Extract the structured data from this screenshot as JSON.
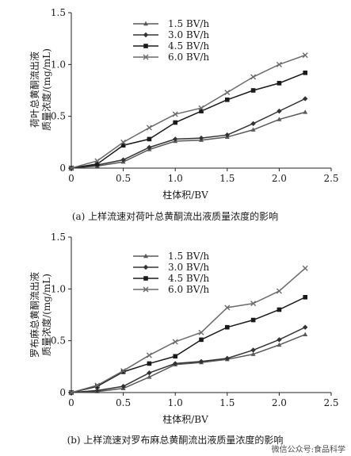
{
  "chart_data": [
    {
      "type": "line",
      "title": "",
      "caption": "(a) 上样流速对荷叶总黄酮流出液质量浓度的影响",
      "xlabel": "柱体积/BV",
      "ylabel_lines": [
        "荷叶总黄酮流出液",
        "质量浓度/(mg/mL)"
      ],
      "xlim": [
        0,
        2.5
      ],
      "ylim": [
        0,
        1.5
      ],
      "xticks": [
        "0",
        "0.5",
        "1.0",
        "1.5",
        "2.0",
        "2.5"
      ],
      "yticks": [
        "0",
        "0.5",
        "1.0",
        "1.5"
      ],
      "legend_position": "top-left",
      "grid": false,
      "series": [
        {
          "name": "1.5 BV/h",
          "marker": "triangle",
          "x": [
            0,
            0.25,
            0.5,
            0.75,
            1.0,
            1.25,
            1.5,
            1.75,
            2.0,
            2.25
          ],
          "y": [
            0,
            0.02,
            0.06,
            0.18,
            0.26,
            0.27,
            0.3,
            0.37,
            0.47,
            0.54
          ]
        },
        {
          "name": "3.0 BV/h",
          "marker": "diamond",
          "x": [
            0,
            0.25,
            0.5,
            0.75,
            1.0,
            1.25,
            1.5,
            1.75,
            2.0,
            2.25
          ],
          "y": [
            0,
            0.03,
            0.08,
            0.2,
            0.28,
            0.29,
            0.32,
            0.43,
            0.55,
            0.67
          ]
        },
        {
          "name": "4.5 BV/h",
          "marker": "square",
          "x": [
            0,
            0.25,
            0.5,
            0.75,
            1.0,
            1.25,
            1.5,
            1.75,
            2.0,
            2.25
          ],
          "y": [
            0,
            0.04,
            0.22,
            0.28,
            0.44,
            0.55,
            0.66,
            0.75,
            0.82,
            0.92
          ]
        },
        {
          "name": "6.0 BV/h",
          "marker": "x",
          "x": [
            0,
            0.25,
            0.5,
            0.75,
            1.0,
            1.25,
            1.5,
            1.75,
            2.0,
            2.25
          ],
          "y": [
            0,
            0.07,
            0.25,
            0.39,
            0.52,
            0.58,
            0.73,
            0.88,
            1.0,
            1.09
          ]
        }
      ]
    },
    {
      "type": "line",
      "title": "",
      "caption": "(b) 上样流速对罗布麻总黄酮流出液质量浓度的影响",
      "xlabel": "柱体积/BV",
      "ylabel_lines": [
        "罗布麻总黄酮流出液",
        "质量浓度/(mg/mL)"
      ],
      "xlim": [
        0,
        2.5
      ],
      "ylim": [
        0,
        1.5
      ],
      "xticks": [
        "0",
        "0.5",
        "1.0",
        "1.5",
        "2.0",
        "2.5"
      ],
      "yticks": [
        "0",
        "0.5",
        "1.0",
        "1.5"
      ],
      "legend_position": "top-left",
      "grid": false,
      "series": [
        {
          "name": "1.5 BV/h",
          "marker": "triangle",
          "x": [
            0,
            0.25,
            0.5,
            0.75,
            1.0,
            1.25,
            1.5,
            1.75,
            2.0,
            2.25
          ],
          "y": [
            0,
            0.01,
            0.04,
            0.15,
            0.27,
            0.29,
            0.32,
            0.37,
            0.46,
            0.56
          ]
        },
        {
          "name": "3.0 BV/h",
          "marker": "diamond",
          "x": [
            0,
            0.25,
            0.5,
            0.75,
            1.0,
            1.25,
            1.5,
            1.75,
            2.0,
            2.25
          ],
          "y": [
            0,
            0.02,
            0.06,
            0.19,
            0.28,
            0.3,
            0.33,
            0.41,
            0.51,
            0.63
          ]
        },
        {
          "name": "4.5 BV/h",
          "marker": "square",
          "x": [
            0,
            0.25,
            0.5,
            0.75,
            1.0,
            1.25,
            1.5,
            1.75,
            2.0,
            2.25
          ],
          "y": [
            0,
            0.06,
            0.2,
            0.28,
            0.35,
            0.51,
            0.63,
            0.7,
            0.8,
            0.92
          ]
        },
        {
          "name": "6.0 BV/h",
          "marker": "x",
          "x": [
            0,
            0.25,
            0.5,
            0.75,
            1.0,
            1.25,
            1.5,
            1.75,
            2.0,
            2.25
          ],
          "y": [
            0,
            0.07,
            0.21,
            0.36,
            0.49,
            0.58,
            0.82,
            0.86,
            0.98,
            1.2
          ]
        }
      ]
    }
  ],
  "watermark": "微信公众号:食品科学"
}
